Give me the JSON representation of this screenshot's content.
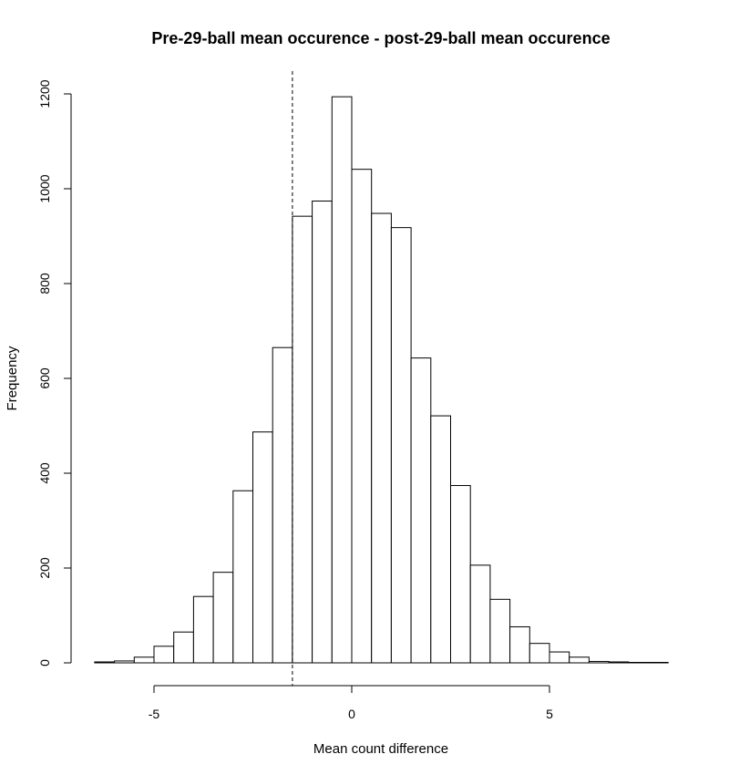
{
  "chart_data": {
    "type": "bar",
    "subtype": "histogram",
    "title": "Pre-29-ball mean occurence - post-29-ball mean occurence",
    "xlabel": "Mean count difference",
    "ylabel": "Frequency",
    "xlim": [
      -6.5,
      8
    ],
    "ylim": [
      0,
      1200
    ],
    "bin_width": 0.5,
    "bin_start": -6.5,
    "values": [
      2,
      4,
      12,
      35,
      65,
      140,
      191,
      363,
      487,
      665,
      942,
      974,
      1194,
      1041,
      948,
      918,
      643,
      521,
      374,
      206,
      134,
      76,
      41,
      23,
      12,
      3,
      2,
      1,
      1
    ],
    "x_ticks": [
      -5,
      0,
      5
    ],
    "x_tick_labels": [
      "-5",
      "0",
      "5"
    ],
    "y_ticks": [
      0,
      200,
      400,
      600,
      800,
      1000,
      1200
    ],
    "y_tick_labels": [
      "0",
      "200",
      "400",
      "600",
      "800",
      "1000",
      "1200"
    ],
    "reference_line": {
      "x": -1.5,
      "style": "dashed"
    },
    "grid": false,
    "legend": "none",
    "colors": {
      "bar_fill": "#ffffff",
      "bar_stroke": "#000000"
    }
  }
}
